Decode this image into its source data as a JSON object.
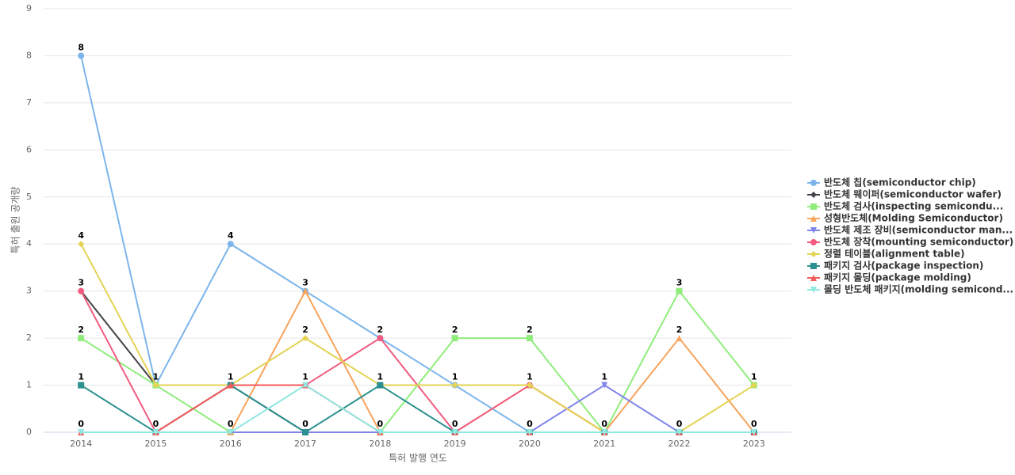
{
  "chart_data": {
    "type": "line",
    "x_label": "특허 발행 연도",
    "y_label": "특허 출원 공개량",
    "categories": [
      "2014",
      "2015",
      "2016",
      "2017",
      "2018",
      "2019",
      "2020",
      "2021",
      "2022",
      "2023"
    ],
    "ylim": [
      0,
      9
    ],
    "yticks": [
      0,
      1,
      2,
      3,
      4,
      5,
      6,
      7,
      8,
      9
    ],
    "grid": true,
    "legend": "right",
    "series": [
      {
        "name": "반도체 칩(semiconductor chip)",
        "color": "#7cb5ec",
        "marker": "circle",
        "values": [
          8,
          1,
          4,
          3,
          2,
          1,
          0,
          0,
          0,
          0
        ]
      },
      {
        "name": "반도체 웨이퍼(semiconductor wafer)",
        "color": "#434348",
        "marker": "diamond",
        "values": [
          3,
          1,
          1,
          0,
          0,
          0,
          0,
          0,
          0,
          0
        ]
      },
      {
        "name": "반도체 검사(inspecting semicondu...",
        "color": "#90ed7d",
        "marker": "square",
        "values": [
          2,
          1,
          0,
          0,
          0,
          2,
          2,
          0,
          3,
          1
        ]
      },
      {
        "name": "성형반도체(Molding Semiconductor)",
        "color": "#f7a35c",
        "marker": "triangle",
        "values": [
          0,
          0,
          0,
          3,
          0,
          0,
          1,
          0,
          2,
          0
        ]
      },
      {
        "name": "반도체 제조 장비(semiconductor man...",
        "color": "#8085e9",
        "marker": "triangle-down",
        "values": [
          0,
          0,
          0,
          0,
          0,
          0,
          0,
          1,
          0,
          0
        ]
      },
      {
        "name": "반도체 장착(mounting semiconductor)",
        "color": "#f15c80",
        "marker": "circle",
        "values": [
          3,
          0,
          1,
          1,
          2,
          0,
          1,
          0,
          0,
          0
        ]
      },
      {
        "name": "정렬 테이블(alignment table)",
        "color": "#e4d354",
        "marker": "diamond",
        "values": [
          4,
          1,
          1,
          2,
          1,
          1,
          1,
          0,
          0,
          1
        ]
      },
      {
        "name": "패키지 검사(package inspection)",
        "color": "#2b908f",
        "marker": "square",
        "values": [
          1,
          0,
          1,
          0,
          1,
          0,
          0,
          0,
          0,
          0
        ]
      },
      {
        "name": "패키지 몰딩(package molding)",
        "color": "#f45b5b",
        "marker": "triangle",
        "values": [
          0,
          0,
          1,
          1,
          0,
          0,
          0,
          0,
          0,
          0
        ]
      },
      {
        "name": "몰딩 반도체 패키지(molding semicond...",
        "color": "#91e8e1",
        "marker": "triangle-down",
        "values": [
          0,
          0,
          0,
          1,
          0,
          0,
          0,
          0,
          0,
          0
        ]
      }
    ]
  }
}
